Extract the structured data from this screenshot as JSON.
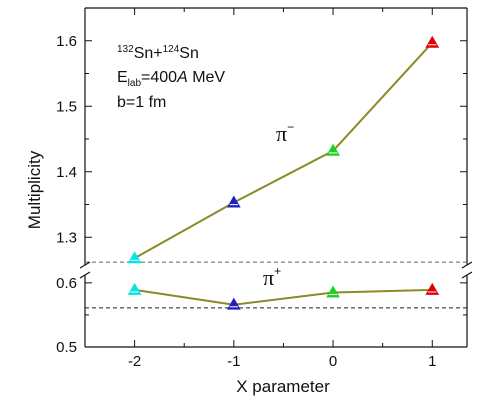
{
  "chart_data": {
    "type": "line",
    "xlabel": "X parameter",
    "ylabel": "Multiplicity",
    "x_ticks": [
      "-2",
      "-1",
      "0",
      "1"
    ],
    "upper_panel": {
      "series_label": "π",
      "series_sign": "−",
      "ylim": [
        1.25,
        1.65
      ],
      "y_ticks": [
        "1.3",
        "1.4",
        "1.5",
        "1.6"
      ],
      "reference_line": 1.262,
      "points": [
        {
          "x": -2,
          "y": 1.268,
          "color": "#00e5e5"
        },
        {
          "x": -1,
          "y": 1.353,
          "color": "#2020c0"
        },
        {
          "x": 0,
          "y": 1.432,
          "color": "#20d020"
        },
        {
          "x": 1,
          "y": 1.597,
          "color": "#e00000"
        }
      ]
    },
    "lower_panel": {
      "series_label": "π",
      "series_sign": "+",
      "ylim": [
        0.5,
        0.62
      ],
      "y_ticks": [
        "0.5",
        "0.6"
      ],
      "reference_line": 0.561,
      "points": [
        {
          "x": -2,
          "y": 0.589,
          "color": "#00e5e5"
        },
        {
          "x": -1,
          "y": 0.566,
          "color": "#2020c0"
        },
        {
          "x": 0,
          "y": 0.585,
          "color": "#20d020"
        },
        {
          "x": 1,
          "y": 0.589,
          "color": "#e00000"
        }
      ]
    },
    "annotation": {
      "mass_a": "132",
      "element_a": "Sn+",
      "mass_b": "124",
      "element_b": "Sn",
      "energy_symbol": "E",
      "energy_sub": "lab",
      "energy_value": "=400",
      "energy_unit_italic": "A",
      "energy_unit": " MeV",
      "impact": "b=1 fm"
    },
    "colors": {
      "line": "#8a8a28",
      "axis": "#111111",
      "reference": "#666666"
    }
  }
}
